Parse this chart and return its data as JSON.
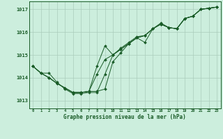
{
  "background_color": "#cceedd",
  "grid_color": "#aaccbb",
  "line_color": "#1a5c28",
  "marker_color": "#1a5c28",
  "title": "Graphe pression niveau de la mer (hPa)",
  "title_color": "#1a5c28",
  "xlim": [
    -0.5,
    23.5
  ],
  "ylim": [
    1012.65,
    1017.35
  ],
  "yticks": [
    1013,
    1014,
    1015,
    1016,
    1017
  ],
  "xticks": [
    0,
    1,
    2,
    3,
    4,
    5,
    6,
    7,
    8,
    9,
    10,
    11,
    12,
    13,
    14,
    15,
    16,
    17,
    18,
    19,
    20,
    21,
    22,
    23
  ],
  "series": [
    [
      1014.5,
      1014.2,
      1014.2,
      1013.8,
      1013.5,
      1013.3,
      1013.3,
      1013.35,
      1013.35,
      1014.15,
      1015.0,
      1015.3,
      1015.55,
      1015.8,
      1015.85,
      1016.15,
      1016.4,
      1016.2,
      1016.15,
      1016.6,
      1016.7,
      1017.0,
      1017.05,
      1017.1
    ],
    [
      1014.5,
      1014.2,
      1014.0,
      1013.75,
      1013.55,
      1013.35,
      1013.35,
      1013.4,
      1014.15,
      1014.8,
      1015.0,
      1015.25,
      1015.5,
      1015.75,
      1015.85,
      1016.15,
      1016.35,
      1016.2,
      1016.15,
      1016.6,
      1016.7,
      1017.0,
      1017.05,
      1017.1
    ],
    [
      1014.5,
      1014.2,
      1014.0,
      1013.75,
      1013.55,
      1013.35,
      1013.35,
      1013.4,
      1013.4,
      1013.5,
      1014.7,
      1015.1,
      1015.5,
      1015.75,
      1015.85,
      1016.15,
      1016.35,
      1016.2,
      1016.15,
      1016.6,
      1016.7,
      1017.0,
      1017.05,
      1017.1
    ],
    [
      1014.5,
      1014.2,
      1014.0,
      1013.75,
      1013.55,
      1013.35,
      1013.35,
      1013.4,
      1014.5,
      1015.4,
      1015.0,
      1015.25,
      1015.5,
      1015.75,
      1015.55,
      1016.15,
      1016.35,
      1016.2,
      1016.15,
      1016.6,
      1016.7,
      1017.0,
      1017.05,
      1017.1
    ]
  ]
}
